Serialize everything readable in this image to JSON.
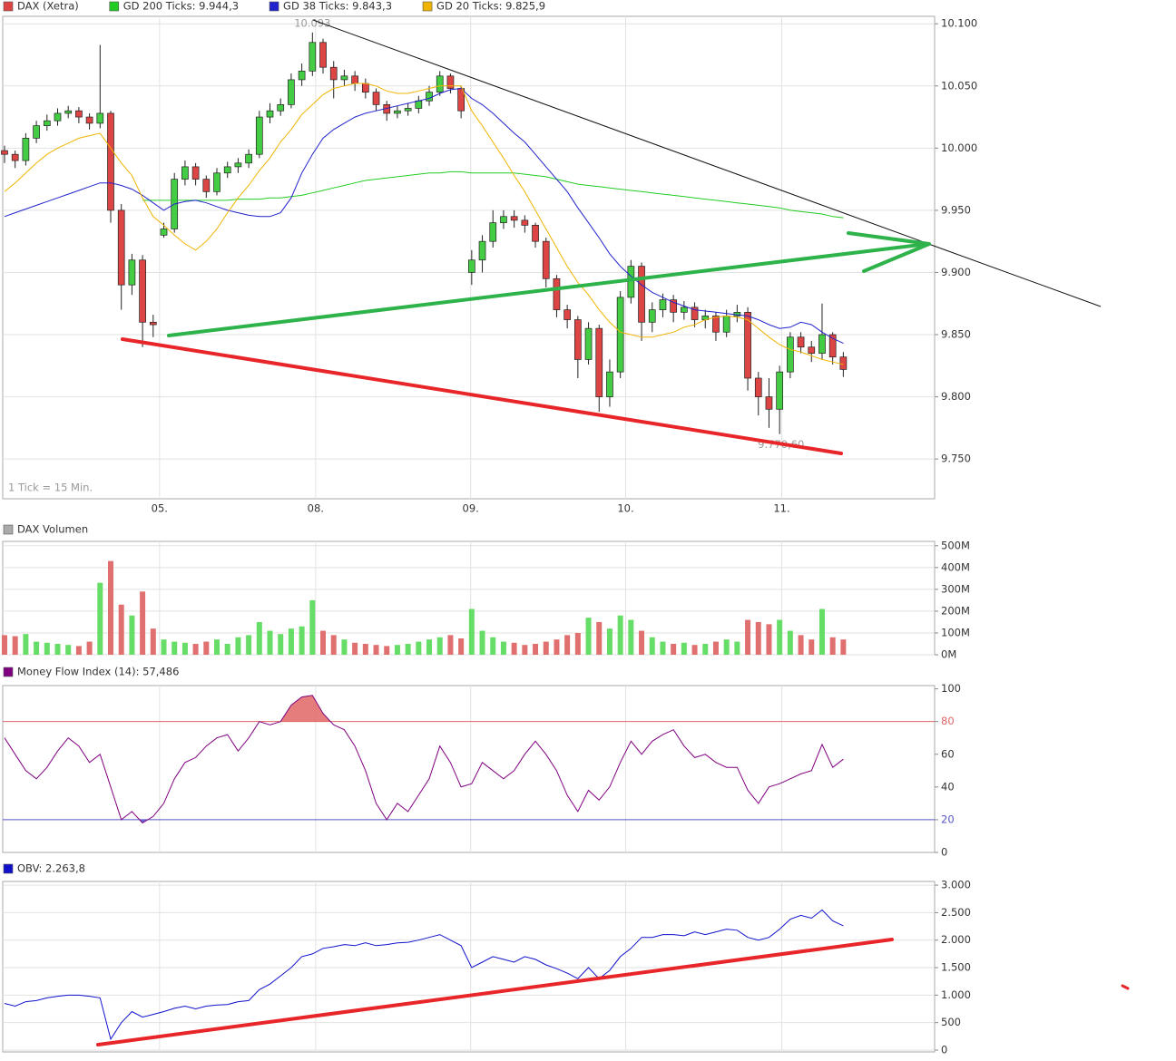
{
  "chart_data": [
    {
      "type": "candlestick",
      "name": "DAX (Xetra)",
      "color": "#dd4444",
      "up_color": "#44cc44",
      "down_color": "#dd4444",
      "note": "1 Tick = 15 Min.",
      "high_label": "10.093",
      "low_label": "9.770,60",
      "open": [
        9998,
        9995,
        9990,
        10008,
        10018,
        10022,
        10028,
        10030,
        10025,
        10020,
        10028,
        9950,
        9890,
        9910,
        9860,
        9930,
        9935,
        9975,
        9985,
        9975,
        9965,
        9980,
        9985,
        9988,
        9995,
        10025,
        10030,
        10035,
        10055,
        10062,
        10085,
        10065,
        10055,
        10058,
        10052,
        10045,
        10035,
        10028,
        10030,
        10032,
        10038,
        10045,
        10058,
        10048,
        9900,
        9910,
        9925,
        9940,
        9945,
        9942,
        9938,
        9925,
        9895,
        9870,
        9862,
        9830,
        9855,
        9800,
        9820,
        9880,
        9905,
        9860,
        9870,
        9878,
        9868,
        9872,
        9862,
        9865,
        9852,
        9865,
        9868,
        9815,
        9800,
        9790,
        9820,
        9848,
        9840,
        9835,
        9850,
        9832
      ],
      "high": [
        10002,
        9998,
        10012,
        10022,
        10027,
        10032,
        10034,
        10033,
        10028,
        10083,
        10030,
        9955,
        9915,
        9914,
        9866,
        9940,
        9980,
        9990,
        9988,
        9978,
        9984,
        9989,
        9992,
        9999,
        10030,
        10036,
        10040,
        10060,
        10068,
        10093,
        10088,
        10070,
        10063,
        10062,
        10056,
        10048,
        10038,
        10034,
        10036,
        10042,
        10050,
        10062,
        10060,
        10050,
        9918,
        9930,
        9950,
        9950,
        9950,
        9946,
        9940,
        9928,
        9898,
        9874,
        9865,
        9860,
        9858,
        9830,
        9885,
        9910,
        9908,
        9876,
        9883,
        9882,
        9877,
        9876,
        9870,
        9868,
        9870,
        9874,
        9872,
        9820,
        9815,
        9825,
        9852,
        9852,
        9845,
        9875,
        9852,
        9836
      ],
      "low": [
        9988,
        9984,
        9986,
        10004,
        10014,
        10018,
        10024,
        10020,
        10015,
        10016,
        9940,
        9870,
        9882,
        9840,
        9848,
        9928,
        9932,
        9970,
        9970,
        9960,
        9962,
        9976,
        9980,
        9984,
        9992,
        10020,
        10026,
        10032,
        10050,
        10058,
        10060,
        10040,
        10050,
        10046,
        10040,
        10030,
        10022,
        10024,
        10026,
        10028,
        10034,
        10042,
        10044,
        10024,
        9890,
        9900,
        9920,
        9935,
        9936,
        9932,
        9920,
        9888,
        9864,
        9855,
        9815,
        9826,
        9788,
        9792,
        9815,
        9875,
        9845,
        9852,
        9864,
        9860,
        9862,
        9856,
        9855,
        9845,
        9848,
        9860,
        9805,
        9785,
        9775,
        9770,
        9815,
        9835,
        9828,
        9830,
        9826,
        9816
      ],
      "close": [
        9995,
        9990,
        10008,
        10018,
        10022,
        10028,
        10030,
        10025,
        10020,
        10028,
        9950,
        9890,
        9910,
        9860,
        9858,
        9935,
        9975,
        9985,
        9975,
        9965,
        9980,
        9985,
        9988,
        9995,
        10025,
        10030,
        10035,
        10055,
        10062,
        10085,
        10065,
        10055,
        10058,
        10052,
        10045,
        10035,
        10028,
        10030,
        10032,
        10038,
        10045,
        10058,
        10048,
        10030,
        9910,
        9925,
        9940,
        9945,
        9942,
        9938,
        9925,
        9895,
        9870,
        9862,
        9830,
        9855,
        9800,
        9820,
        9880,
        9905,
        9860,
        9870,
        9878,
        9868,
        9872,
        9862,
        9865,
        9852,
        9865,
        9868,
        9815,
        9800,
        9790,
        9820,
        9848,
        9840,
        9835,
        9850,
        9832,
        9822
      ],
      "series": [
        {
          "name": "GD 200 Ticks: 9.944,3",
          "color": "#22cc22",
          "values": [
            null,
            null,
            null,
            null,
            null,
            null,
            null,
            null,
            null,
            null,
            null,
            null,
            null,
            9958,
            9958,
            9958,
            9958,
            9958,
            9958,
            9958,
            9958,
            9958,
            9959,
            9959,
            9959,
            9960,
            9960,
            9961,
            9962,
            9964,
            9966,
            9968,
            9970,
            9972,
            9974,
            9975,
            9976,
            9977,
            9978,
            9979,
            9980,
            9980,
            9981,
            9981,
            9980,
            9980,
            9980,
            9980,
            9980,
            9979,
            9978,
            9977,
            9975,
            9973,
            9971,
            9970,
            9969,
            9968,
            9967,
            9966,
            9965,
            9964,
            9963,
            9962,
            9961,
            9960,
            9959,
            9958,
            9957,
            9956,
            9955,
            9954,
            9953,
            9952,
            9950,
            9949,
            9948,
            9947,
            9945,
            9944
          ]
        },
        {
          "name": "GD 38 Ticks: 9.843,3",
          "color": "#2222cc",
          "values": [
            9945,
            9948,
            9951,
            9954,
            9957,
            9960,
            9963,
            9966,
            9969,
            9972,
            9972,
            9970,
            9967,
            9962,
            9956,
            9950,
            9955,
            9957,
            9958,
            9956,
            9953,
            9950,
            9948,
            9946,
            9945,
            9945,
            9948,
            9960,
            9980,
            9995,
            10008,
            10015,
            10020,
            10025,
            10028,
            10030,
            10032,
            10034,
            10036,
            10038,
            10040,
            10044,
            10047,
            10048,
            10040,
            10035,
            10028,
            10020,
            10012,
            10005,
            9995,
            9985,
            9975,
            9965,
            9952,
            9940,
            9928,
            9915,
            9905,
            9897,
            9890,
            9884,
            9880,
            9876,
            9873,
            9870,
            9869,
            9868,
            9867,
            9866,
            9865,
            9862,
            9858,
            9855,
            9856,
            9860,
            9858,
            9852,
            9847,
            9843
          ]
        },
        {
          "name": "GD 20 Ticks: 9.825,9",
          "color": "#f0b400",
          "values": [
            9965,
            9972,
            9980,
            9988,
            9995,
            10000,
            10004,
            10008,
            10010,
            10012,
            10000,
            9988,
            9978,
            9960,
            9945,
            9938,
            9930,
            9923,
            9918,
            9925,
            9935,
            9948,
            9960,
            9970,
            9982,
            9992,
            10005,
            10015,
            10027,
            10035,
            10043,
            10048,
            10050,
            10052,
            10052,
            10050,
            10046,
            10044,
            10044,
            10046,
            10048,
            10050,
            10050,
            10050,
            10030,
            10018,
            10005,
            9992,
            9978,
            9965,
            9950,
            9935,
            9920,
            9905,
            9892,
            9882,
            9870,
            9860,
            9852,
            9850,
            9848,
            9848,
            9850,
            9852,
            9856,
            9858,
            9862,
            9864,
            9865,
            9864,
            9862,
            9855,
            9848,
            9842,
            9838,
            9836,
            9833,
            9830,
            9828,
            9826
          ]
        }
      ],
      "xlim": [
        -0.17,
        87.6
      ],
      "xticks": [
        {
          "value": 14.6,
          "label": "05."
        },
        {
          "value": 29.3,
          "label": "08."
        },
        {
          "value": 43.9,
          "label": "09."
        },
        {
          "value": 58.5,
          "label": "10."
        },
        {
          "value": 73.2,
          "label": "11."
        }
      ],
      "ylim": [
        9718,
        10106
      ],
      "yticks": [
        {
          "value": 9750,
          "label": "9.750"
        },
        {
          "value": 9800,
          "label": "9.800"
        },
        {
          "value": 9850,
          "label": "9.850"
        },
        {
          "value": 9900,
          "label": "9.900"
        },
        {
          "value": 9950,
          "label": "9.950"
        },
        {
          "value": 10000,
          "label": "10.000"
        },
        {
          "value": 10050,
          "label": "10.050"
        },
        {
          "value": 10100,
          "label": "10.100"
        }
      ],
      "grid": true
    },
    {
      "type": "bar",
      "title": "DAX Volumen",
      "color": "#aaaaaa",
      "up_color": "#66dd66",
      "down_color": "#e07070",
      "values": [
        90,
        85,
        95,
        60,
        55,
        50,
        45,
        40,
        60,
        330,
        430,
        230,
        180,
        290,
        120,
        70,
        60,
        55,
        50,
        60,
        70,
        50,
        80,
        90,
        150,
        110,
        95,
        120,
        130,
        250,
        110,
        90,
        70,
        55,
        50,
        45,
        40,
        45,
        50,
        60,
        70,
        80,
        90,
        75,
        210,
        110,
        80,
        60,
        55,
        45,
        50,
        60,
        70,
        90,
        100,
        170,
        150,
        120,
        180,
        160,
        110,
        80,
        60,
        50,
        55,
        45,
        50,
        60,
        70,
        60,
        160,
        150,
        140,
        160,
        110,
        90,
        70,
        210,
        80,
        70
      ],
      "ylim": [
        0,
        520
      ],
      "yticks": [
        {
          "value": 0,
          "label": "0M"
        },
        {
          "value": 100,
          "label": "100M"
        },
        {
          "value": 200,
          "label": "200M"
        },
        {
          "value": 300,
          "label": "300M"
        },
        {
          "value": 400,
          "label": "400M"
        },
        {
          "value": 500,
          "label": "500M"
        }
      ],
      "grid": true
    },
    {
      "type": "line",
      "title": "Money Flow Index (14): 57,486",
      "color": "#800080",
      "values": [
        70,
        60,
        50,
        45,
        52,
        62,
        70,
        65,
        55,
        60,
        40,
        20,
        25,
        18,
        22,
        30,
        45,
        55,
        58,
        65,
        70,
        72,
        62,
        70,
        80,
        78,
        80,
        90,
        95,
        96,
        85,
        78,
        75,
        65,
        50,
        30,
        20,
        30,
        25,
        35,
        45,
        65,
        55,
        40,
        42,
        55,
        50,
        45,
        50,
        60,
        68,
        60,
        50,
        35,
        25,
        38,
        32,
        40,
        55,
        68,
        60,
        68,
        72,
        75,
        65,
        58,
        60,
        55,
        52,
        52,
        38,
        30,
        40,
        42,
        45,
        48,
        50,
        66,
        52,
        57
      ],
      "ylim": [
        0,
        102
      ],
      "yticks": [
        0,
        {
          "value": 20,
          "color": "#5555cc"
        },
        40,
        60,
        {
          "value": 80,
          "color": "#e06666"
        },
        100
      ],
      "grid": false
    },
    {
      "type": "line",
      "title": "OBV: 2.263,8",
      "color": "#1111cc",
      "values": [
        850,
        800,
        880,
        900,
        950,
        980,
        1000,
        1000,
        980,
        950,
        200,
        500,
        700,
        600,
        650,
        700,
        760,
        800,
        750,
        800,
        820,
        830,
        880,
        900,
        1100,
        1200,
        1350,
        1500,
        1700,
        1750,
        1850,
        1880,
        1920,
        1900,
        1950,
        1900,
        1920,
        1950,
        1960,
        2000,
        2050,
        2100,
        2000,
        1900,
        1500,
        1600,
        1700,
        1650,
        1600,
        1700,
        1650,
        1550,
        1480,
        1400,
        1300,
        1500,
        1300,
        1450,
        1700,
        1850,
        2050,
        2050,
        2100,
        2100,
        2080,
        2150,
        2100,
        2150,
        2200,
        2180,
        2050,
        2000,
        2050,
        2200,
        2380,
        2450,
        2400,
        2550,
        2350,
        2260
      ],
      "ylim": [
        -33,
        3067
      ],
      "yticks": [
        0,
        500,
        {
          "value": 1000,
          "label": "1.000"
        },
        {
          "value": 1500,
          "label": "1.500"
        },
        {
          "value": 2000,
          "label": "2.000"
        },
        {
          "value": 2500,
          "label": "2.500"
        },
        {
          "value": 3000,
          "label": "3.000"
        }
      ],
      "grid": true
    }
  ]
}
